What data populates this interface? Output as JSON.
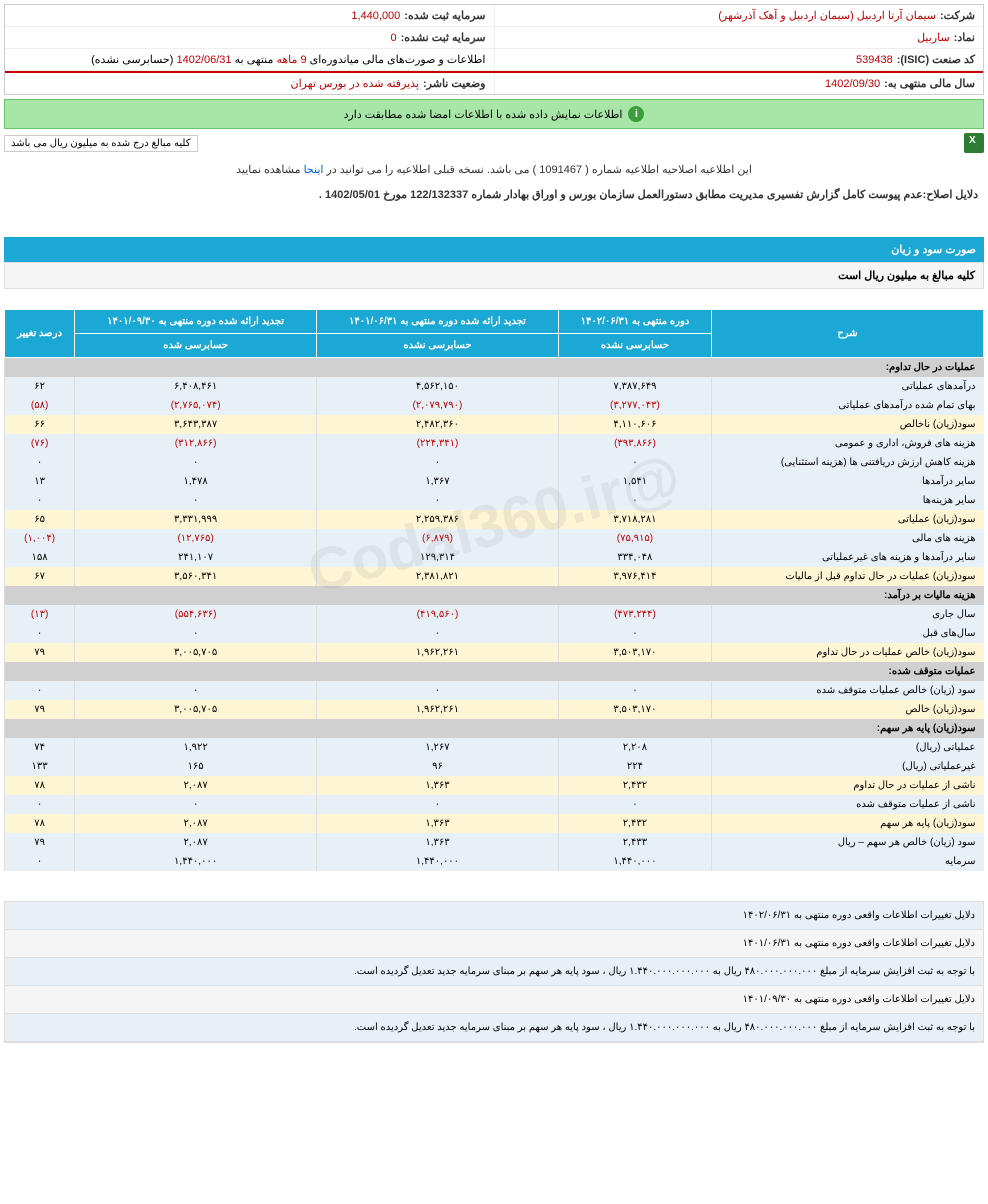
{
  "header": {
    "company_lbl": "شرکت:",
    "company_val": "سیمان آرتا اردبیل (سیمان اردبیل و آهک آذرشهر)",
    "capital_reg_lbl": "سرمایه ثبت شده:",
    "capital_reg_val": "1,440,000",
    "symbol_lbl": "نماد:",
    "symbol_val": "ساربیل",
    "capital_unreg_lbl": "سرمایه ثبت نشده:",
    "capital_unreg_val": "0",
    "isic_lbl": "کد صنعت (ISIC):",
    "isic_val": "539438",
    "report_lbl": "اطلاعات و صورت‌های مالی میاندوره‌ای",
    "report_period": "9 ماهه",
    "report_end": "منتهی به",
    "report_date": "1402/06/31",
    "report_status": "(حسابرسی نشده)",
    "year_lbl": "سال مالی منتهی به:",
    "year_val": "1402/09/30",
    "publisher_lbl": "وضعیت ناشر:",
    "publisher_val": "پذیرفته شده در بورس تهران"
  },
  "info_bar": "اطلاعات نمایش داده شده با اطلاعات امضا شده مطابقت دارد",
  "badge": "کلیه مبالغ درج شده به میلیون ریال می باشد",
  "note1_a": "این اطلاعیه اصلاحیه اطلاعیه شماره ( 1091467 ) می باشد. نسخه قبلی اطلاعیه را می توانید در",
  "note1_link": "اینجا",
  "note1_b": "مشاهده نمایید",
  "reason": "دلایل اصلاح:عدم پیوست کامل گزارش تفسیری مدیریت مطابق دستورالعمل سازمان بورس و اوراق بهادار شماره 122/132337 مورخ 1402/05/01 .",
  "section_title": "صورت سود و زیان",
  "section_sub": "کلیه مبالغ به میلیون ریال است",
  "watermark": "@Codal360.ir",
  "table": {
    "headers": {
      "desc": "شرح",
      "col1_top": "دوره منتهی به ۱۴۰۲/۰۶/۳۱",
      "col1_sub": "حسابرسی نشده",
      "col2_top": "تجدید ارائه شده دوره منتهی به ۱۴۰۱/۰۶/۳۱",
      "col2_sub": "حسابرسی نشده",
      "col3_top": "تجدید ارائه شده دوره منتهی به ۱۴۰۱/۰۹/۳۰",
      "col3_sub": "حسابرسی شده",
      "col4": "درصد تغییر"
    },
    "rows": [
      {
        "type": "sec",
        "desc": "عملیات در حال تداوم:"
      },
      {
        "type": "blue",
        "desc": "درآمدهای عملیاتی",
        "c1": "۷,۳۸۷,۶۴۹",
        "c2": "۴,۵۶۲,۱۵۰",
        "c3": "۶,۴۰۸,۴۶۱",
        "c4": "۶۲"
      },
      {
        "type": "blue",
        "desc": "بهای تمام شده درآمدهای عملیاتی",
        "c1": "(۳,۲۷۷,۰۴۳)",
        "c2": "(۲,۰۷۹,۷۹۰)",
        "c3": "(۲,۷۶۵,۰۷۴)",
        "c4": "(۵۸)",
        "neg": true
      },
      {
        "type": "yellow",
        "desc": "سود(زیان) ناخالص",
        "c1": "۴,۱۱۰,۶۰۶",
        "c2": "۲,۴۸۲,۳۶۰",
        "c3": "۳,۶۴۳,۳۸۷",
        "c4": "۶۶"
      },
      {
        "type": "blue",
        "desc": "هزینه های فروش، اداری و عمومی",
        "c1": "(۳۹۳,۸۶۶)",
        "c2": "(۲۲۴,۳۴۱)",
        "c3": "(۳۱۲,۸۶۶)",
        "c4": "(۷۶)",
        "neg": true
      },
      {
        "type": "blue",
        "desc": "هزینه کاهش ارزش دریافتنی ها (هزینه استثنایی)",
        "c1": "۰",
        "c2": "۰",
        "c3": "۰",
        "c4": "۰"
      },
      {
        "type": "blue",
        "desc": "سایر درآمدها",
        "c1": "۱,۵۴۱",
        "c2": "۱,۳۶۷",
        "c3": "۱,۴۷۸",
        "c4": "۱۳"
      },
      {
        "type": "blue",
        "desc": "سایر هزینه‌ها",
        "c1": "۰",
        "c2": "۰",
        "c3": "۰",
        "c4": "۰"
      },
      {
        "type": "yellow",
        "desc": "سود(زیان) عملیاتی",
        "c1": "۳,۷۱۸,۲۸۱",
        "c2": "۲,۲۵۹,۳۸۶",
        "c3": "۳,۳۳۱,۹۹۹",
        "c4": "۶۵"
      },
      {
        "type": "blue",
        "desc": "هزینه های مالی",
        "c1": "(۷۵,۹۱۵)",
        "c2": "(۶,۸۷۹)",
        "c3": "(۱۲,۷۶۵)",
        "c4": "(۱,۰۰۴)",
        "neg": true
      },
      {
        "type": "blue",
        "desc": "سایر درآمدها و هزینه های غیرعملیاتی",
        "c1": "۳۳۴,۰۴۸",
        "c2": "۱۲۹,۳۱۴",
        "c3": "۲۴۱,۱۰۷",
        "c4": "۱۵۸"
      },
      {
        "type": "yellow",
        "desc": "سود(زیان) عملیات در حال تداوم قبل از مالیات",
        "c1": "۳,۹۷۶,۴۱۴",
        "c2": "۲,۳۸۱,۸۲۱",
        "c3": "۳,۵۶۰,۳۴۱",
        "c4": "۶۷"
      },
      {
        "type": "sec",
        "desc": "هزینه مالیات بر درآمد:"
      },
      {
        "type": "blue",
        "desc": "سال جاری",
        "c1": "(۴۷۳,۲۴۴)",
        "c2": "(۴۱۹,۵۶۰)",
        "c3": "(۵۵۴,۶۳۶)",
        "c4": "(۱۳)",
        "neg": true
      },
      {
        "type": "blue",
        "desc": "سال‌های قبل",
        "c1": "۰",
        "c2": "۰",
        "c3": "۰",
        "c4": "۰"
      },
      {
        "type": "yellow",
        "desc": "سود(زیان) خالص عملیات در حال تداوم",
        "c1": "۳,۵۰۳,۱۷۰",
        "c2": "۱,۹۶۲,۲۶۱",
        "c3": "۳,۰۰۵,۷۰۵",
        "c4": "۷۹"
      },
      {
        "type": "sec",
        "desc": "عملیات متوقف شده:"
      },
      {
        "type": "blue",
        "desc": "سود (زیان) خالص عملیات متوقف شده",
        "c1": "۰",
        "c2": "۰",
        "c3": "۰",
        "c4": "۰"
      },
      {
        "type": "yellow",
        "desc": "سود(زیان) خالص",
        "c1": "۳,۵۰۳,۱۷۰",
        "c2": "۱,۹۶۲,۲۶۱",
        "c3": "۳,۰۰۵,۷۰۵",
        "c4": "۷۹"
      },
      {
        "type": "sec",
        "desc": "سود(زیان) پایه هر سهم:"
      },
      {
        "type": "blue",
        "desc": "عملیاتی (ریال)",
        "c1": "۲,۲۰۸",
        "c2": "۱,۲۶۷",
        "c3": "۱,۹۲۲",
        "c4": "۷۴"
      },
      {
        "type": "blue",
        "desc": "غیرعملیاتی (ریال)",
        "c1": "۲۲۴",
        "c2": "۹۶",
        "c3": "۱۶۵",
        "c4": "۱۳۳"
      },
      {
        "type": "yellow",
        "desc": "ناشی از عملیات در حال تداوم",
        "c1": "۲,۴۳۲",
        "c2": "۱,۳۶۳",
        "c3": "۲,۰۸۷",
        "c4": "۷۸"
      },
      {
        "type": "blue",
        "desc": "ناشی از عملیات متوقف شده",
        "c1": "۰",
        "c2": "۰",
        "c3": "۰",
        "c4": "۰"
      },
      {
        "type": "yellow",
        "desc": "سود(زیان) پایه هر سهم",
        "c1": "۲,۴۳۲",
        "c2": "۱,۳۶۳",
        "c3": "۲,۰۸۷",
        "c4": "۷۸"
      },
      {
        "type": "blue",
        "desc": "سود (زیان) خالص هر سهم – ریال",
        "c1": "۲,۴۳۳",
        "c2": "۱,۳۶۳",
        "c3": "۲,۰۸۷",
        "c4": "۷۹"
      },
      {
        "type": "blue",
        "desc": "سرمایه",
        "c1": "۱,۴۴۰,۰۰۰",
        "c2": "۱,۴۴۰,۰۰۰",
        "c3": "۱,۴۴۰,۰۰۰",
        "c4": "۰"
      }
    ]
  },
  "footer": [
    "دلایل تغییرات اطلاعات واقعی دوره منتهی به ۱۴۰۲/۰۶/۳۱",
    "دلایل تغییرات اطلاعات واقعی دوره منتهی به ۱۴۰۱/۰۶/۳۱",
    "با توجه به ثبت افزایش سرمایه از مبلغ ۴۸۰.۰۰۰.۰۰۰.۰۰۰ ریال به ۱.۴۴۰.۰۰۰.۰۰۰.۰۰۰ ریال ، سود پایه هر سهم بر مبنای سرمایه جدید تعدیل گردیده است.",
    "دلایل تغییرات اطلاعات واقعی دوره منتهی به ۱۴۰۱/۰۹/۳۰",
    "با توجه به ثبت افزایش سرمایه از مبلغ ۴۸۰.۰۰۰.۰۰۰.۰۰۰ ریال به ۱.۴۴۰.۰۰۰.۰۰۰.۰۰۰ ریال ، سود پایه هر سهم بر مبنای سرمایه جدید تعدیل گردیده است."
  ]
}
